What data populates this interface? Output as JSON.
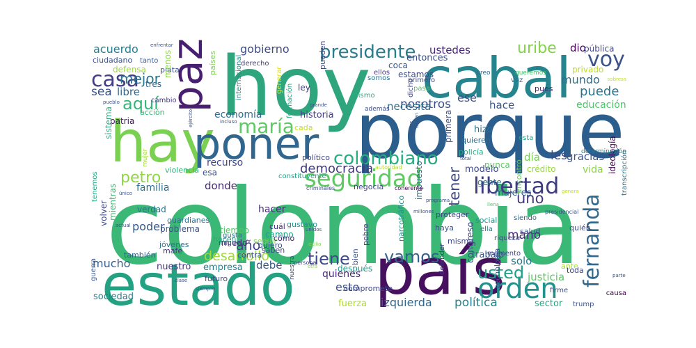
{
  "words": [
    {
      "text": "colombia",
      "color": "#3bb875"
    },
    {
      "text": "porque",
      "color": "#2b5e8c"
    },
    {
      "text": "hoy",
      "color": "#2ea57d"
    },
    {
      "text": "cabal",
      "color": "#25848e"
    },
    {
      "text": "país",
      "color": "#46105f"
    },
    {
      "text": "estado",
      "color": "#23a283"
    },
    {
      "text": "hay",
      "color": "#7ad151"
    },
    {
      "text": "poner",
      "color": "#31678e"
    },
    {
      "text": "paz",
      "color": "#481f70"
    },
    {
      "text": "libertad",
      "color": "#3f3c84"
    },
    {
      "text": "seguridad",
      "color": "#5ec962"
    },
    {
      "text": "orden",
      "color": "#21918c"
    },
    {
      "text": "fernanda",
      "color": "#31688e"
    },
    {
      "text": "vamos",
      "color": "#355f8d"
    },
    {
      "text": "voy",
      "color": "#3b528b"
    },
    {
      "text": "uribe",
      "color": "#84d44b"
    },
    {
      "text": "presidente",
      "color": "#287c8e"
    },
    {
      "text": "colombiano",
      "color": "#26ad81"
    },
    {
      "text": "maría",
      "color": "#5ec962"
    },
    {
      "text": "aquí",
      "color": "#35b779"
    },
    {
      "text": "casa",
      "color": "#433e85"
    },
    {
      "text": "mejor",
      "color": "#2a788e"
    },
    {
      "text": "usted",
      "color": "#1fa188"
    },
    {
      "text": "tiene",
      "color": "#3e4989"
    },
    {
      "text": "democracia",
      "color": "#44397e"
    },
    {
      "text": "petro",
      "color": "#8fd744"
    },
    {
      "text": "desarrollo",
      "color": "#a0da39"
    },
    {
      "text": "política",
      "color": "#25848e"
    },
    {
      "text": "izquierda",
      "color": "#31688e"
    },
    {
      "text": "gobierno",
      "color": "#3e4c8a"
    },
    {
      "text": "ustedes",
      "color": "#482677"
    },
    {
      "text": "acuerdo",
      "color": "#287d8e"
    },
    {
      "text": "economía",
      "color": "#2f6b8e"
    },
    {
      "text": "nosotros",
      "color": "#3d4e8a"
    },
    {
      "text": "mundo",
      "color": "#2e6f8e"
    },
    {
      "text": "puede",
      "color": "#2b748e"
    },
    {
      "text": "hace",
      "color": "#39558c"
    },
    {
      "text": "educación",
      "color": "#50c46a"
    },
    {
      "text": "necesita",
      "color": "#2d708e"
    },
    {
      "text": "tener",
      "color": "#3e4a89"
    },
    {
      "text": "uno",
      "color": "#453781"
    },
    {
      "text": "mano",
      "color": "#472d7b"
    },
    {
      "text": "gracias",
      "color": "#3a548c"
    },
    {
      "text": "vida",
      "color": "#8bd646"
    },
    {
      "text": "año",
      "color": "#414487"
    },
    {
      "text": "donde",
      "color": "#482878"
    },
    {
      "text": "familia",
      "color": "#2c728e"
    },
    {
      "text": "poder",
      "color": "#375a8c"
    },
    {
      "text": "mucho",
      "color": "#355e8d"
    },
    {
      "text": "debe",
      "color": "#38598c"
    },
    {
      "text": "esto",
      "color": "#3b528b"
    },
    {
      "text": "fuerza",
      "color": "#addc30"
    },
    {
      "text": "sociedad",
      "color": "#277f8e"
    },
    {
      "text": "justicia",
      "color": "#5ec962"
    },
    {
      "text": "solo",
      "color": "#287c8e"
    },
    {
      "text": "sector",
      "color": "#22a884"
    },
    {
      "text": "ese",
      "color": "#3b528b"
    },
    {
      "text": "les",
      "color": "#3e4a89"
    },
    {
      "text": "libre",
      "color": "#32658e"
    },
    {
      "text": "sea",
      "color": "#3a548c"
    },
    {
      "text": "día",
      "color": "#75d054"
    },
    {
      "text": "hizo",
      "color": "#2a768e"
    },
    {
      "text": "recurso",
      "color": "#414487"
    },
    {
      "text": "trabajo",
      "color": "#39568c"
    },
    {
      "text": "quienes",
      "color": "#482979"
    },
    {
      "text": "empresa",
      "color": "#26828e"
    },
    {
      "text": "nuestro",
      "color": "#46337f"
    },
    {
      "text": "también",
      "color": "#355f8d"
    },
    {
      "text": "contra",
      "color": "#3d4d8a"
    },
    {
      "text": "hacer",
      "color": "#472c7a"
    },
    {
      "text": "verdad",
      "color": "#2c718e"
    },
    {
      "text": "gente",
      "color": "#2c738e"
    },
    {
      "text": "mujeres",
      "color": "#355f8d"
    },
    {
      "text": "modelo",
      "color": "#3f4889"
    },
    {
      "text": "historia",
      "color": "#433d84"
    },
    {
      "text": "crédito",
      "color": "#98d83e"
    },
    {
      "text": "social",
      "color": "#21918c"
    },
    {
      "text": "entonces",
      "color": "#3c4f8a"
    },
    {
      "text": "coca",
      "color": "#39568c"
    },
    {
      "text": "ley",
      "color": "#443983"
    },
    {
      "text": "estamos",
      "color": "#3e4a89"
    },
    {
      "text": "dio",
      "color": "#440154"
    },
    {
      "text": "pública",
      "color": "#404588"
    },
    {
      "text": "privado",
      "color": "#bade28"
    },
    {
      "text": "pues",
      "color": "#482475"
    },
    {
      "text": "voz",
      "color": "#2f6c8e"
    },
    {
      "text": "tres",
      "color": "#31688e"
    },
    {
      "text": "defensa",
      "color": "#9bd93c"
    },
    {
      "text": "plata",
      "color": "#3b528b"
    },
    {
      "text": "cambio",
      "color": "#433e85"
    },
    {
      "text": "acción",
      "color": "#3aba76"
    },
    {
      "text": "patria",
      "color": "#481467"
    },
    {
      "text": "sistema",
      "color": "#29af7f"
    },
    {
      "text": "violencia",
      "color": "#31b57b"
    },
    {
      "text": "esa",
      "color": "#3b518b"
    },
    {
      "text": "países",
      "color": "#7fd34e"
    },
    {
      "text": "derecho",
      "color": "#443a83"
    },
    {
      "text": "ciudadano",
      "color": "#3b528b"
    },
    {
      "text": "tanto",
      "color": "#375b8d"
    },
    {
      "text": "menos",
      "color": "#8bd646"
    },
    {
      "text": "cada",
      "color": "#c8e020"
    },
    {
      "text": "somos",
      "color": "#2d718e"
    },
    {
      "text": "pasa",
      "color": "#56c667"
    },
    {
      "text": "dicho",
      "color": "#404688"
    },
    {
      "text": "primero",
      "color": "#3e4c8a"
    },
    {
      "text": "además",
      "color": "#3e4c8a"
    },
    {
      "text": "mismo",
      "color": "#29af7f"
    },
    {
      "text": "ellos",
      "color": "#453882"
    },
    {
      "text": "creo",
      "color": "#30698e"
    },
    {
      "text": "queremos",
      "color": "#4ac16d"
    },
    {
      "text": "generar",
      "color": "#e5e419"
    },
    {
      "text": "internacional",
      "color": "#228b8d"
    },
    {
      "text": "pueden",
      "color": "#3f4788"
    },
    {
      "text": "formación",
      "color": "#22a785"
    },
    {
      "text": "primera",
      "color": "#3b518b"
    },
    {
      "text": "policía",
      "color": "#25ac82"
    },
    {
      "text": "quieren",
      "color": "#2e6e8e"
    },
    {
      "text": "esta",
      "color": "#1fa187"
    },
    {
      "text": "encontró",
      "color": "#67cc5c"
    },
    {
      "text": "ideología",
      "color": "#440154"
    },
    {
      "text": "transcripción",
      "color": "#2b748e"
    },
    {
      "text": "determinación",
      "color": "#277e8e"
    },
    {
      "text": "nunca",
      "color": "#5cc863"
    },
    {
      "text": "volver",
      "color": "#3e4989"
    },
    {
      "text": "mientras",
      "color": "#3aba76"
    },
    {
      "text": "tenemos",
      "color": "#22a884"
    },
    {
      "text": "mujer",
      "color": "#9fda3a"
    },
    {
      "text": "mafe",
      "color": "#46327e"
    },
    {
      "text": "problema",
      "color": "#3b528b"
    },
    {
      "text": "guardianes",
      "color": "#2d708e"
    },
    {
      "text": "jóvenes",
      "color": "#2c728e"
    },
    {
      "text": "miedo",
      "color": "#482475"
    },
    {
      "text": "tiempo",
      "color": "#52c569"
    },
    {
      "text": "hacen",
      "color": "#26ad81"
    },
    {
      "text": "gusta",
      "color": "#2c738e"
    },
    {
      "text": "seguir",
      "color": "#7ad151"
    },
    {
      "text": "cuál",
      "color": "#46307e"
    },
    {
      "text": "gustavo",
      "color": "#21918c"
    },
    {
      "text": "campo",
      "color": "#1fa287"
    },
    {
      "text": "quiero",
      "color": "#3b528b"
    },
    {
      "text": "saben",
      "color": "#3f4788"
    },
    {
      "text": "cómo",
      "color": "#482173"
    },
    {
      "text": "bien",
      "color": "#3b528b"
    },
    {
      "text": "pobre",
      "color": "#443983"
    },
    {
      "text": "narcotráfico",
      "color": "#21918c"
    },
    {
      "text": "impuesto",
      "color": "#2f6c8e"
    },
    {
      "text": "proteger",
      "color": "#3f4788"
    },
    {
      "text": "haya",
      "color": "#3b528b"
    },
    {
      "text": "misma",
      "color": "#3f4889"
    },
    {
      "text": "ella",
      "color": "#2a788e"
    },
    {
      "text": "riqueza",
      "color": "#414487"
    },
    {
      "text": "salud",
      "color": "#3b528b"
    },
    {
      "text": "siendo",
      "color": "#2f6b8e"
    },
    {
      "text": "quién",
      "color": "#3e4a89"
    },
    {
      "text": "momento",
      "color": "#3f4889"
    },
    {
      "text": "ante",
      "color": "#a5db36"
    },
    {
      "text": "toda",
      "color": "#3f4788"
    },
    {
      "text": "causa",
      "color": "#440154"
    },
    {
      "text": "trump",
      "color": "#3b528b"
    },
    {
      "text": "firme",
      "color": "#3b528b"
    },
    {
      "text": "tecnología",
      "color": "#3b528b"
    },
    {
      "text": "congreso",
      "color": "#3e4a89"
    },
    {
      "text": "defender",
      "color": "#443983"
    },
    {
      "text": "después",
      "color": "#1e9b8a"
    },
    {
      "text": "compromete",
      "color": "#3f4788"
    },
    {
      "text": "futuro",
      "color": "#3e4989"
    },
    {
      "text": "guerra",
      "color": "#3b528b"
    },
    {
      "text": "nuestra",
      "color": "#3e4989"
    },
    {
      "text": "político",
      "color": "#3f4788"
    },
    {
      "text": "constituyente",
      "color": "#1fa187"
    },
    {
      "text": "criminales",
      "color": "#3e4c8a"
    },
    {
      "text": "negocia",
      "color": "#3e4989"
    },
    {
      "text": "coherente",
      "color": "#440154"
    },
    {
      "text": "autoridad",
      "color": "#bade28"
    },
    {
      "text": "presidencial",
      "color": "#3b528b"
    },
    {
      "text": "miguel",
      "color": "#3b528b"
    },
    {
      "text": "persona",
      "color": "#404588"
    },
    {
      "text": "otra",
      "color": "#8bd646"
    },
    {
      "text": "clase",
      "color": "#3b528b"
    },
    {
      "text": "incluso",
      "color": "#3b528b"
    },
    {
      "text": "ejército",
      "color": "#3b528b"
    },
    {
      "text": "grande",
      "color": "#3b528b"
    },
    {
      "text": "pueblo",
      "color": "#3b528b"
    },
    {
      "text": "enfrentar",
      "color": "#3b528b"
    },
    {
      "text": "total",
      "color": "#3b528b"
    },
    {
      "text": "sobresa",
      "color": "#c2df23"
    },
    {
      "text": "genera",
      "color": "#bade28"
    },
    {
      "text": "llena",
      "color": "#50c46a"
    },
    {
      "text": "programa",
      "color": "#3b528b"
    },
    {
      "text": "unidos",
      "color": "#3b528b"
    },
    {
      "text": "exilio",
      "color": "#7fd34e"
    },
    {
      "text": "millones",
      "color": "#3b528b"
    },
    {
      "text": "único",
      "color": "#3b528b"
    },
    {
      "text": "actual",
      "color": "#3b528b"
    },
    {
      "text": "parte",
      "color": "#3b528b"
    },
    {
      "text": "siempre",
      "color": "#3b528b"
    },
    {
      "text": "tienen",
      "color": "#3b528b"
    },
    {
      "text": "quiere",
      "color": "#3b528b"
    },
    {
      "text": "mirar",
      "color": "#e5e419"
    },
    {
      "text": "resultó",
      "color": "#d8e219"
    }
  ]
}
